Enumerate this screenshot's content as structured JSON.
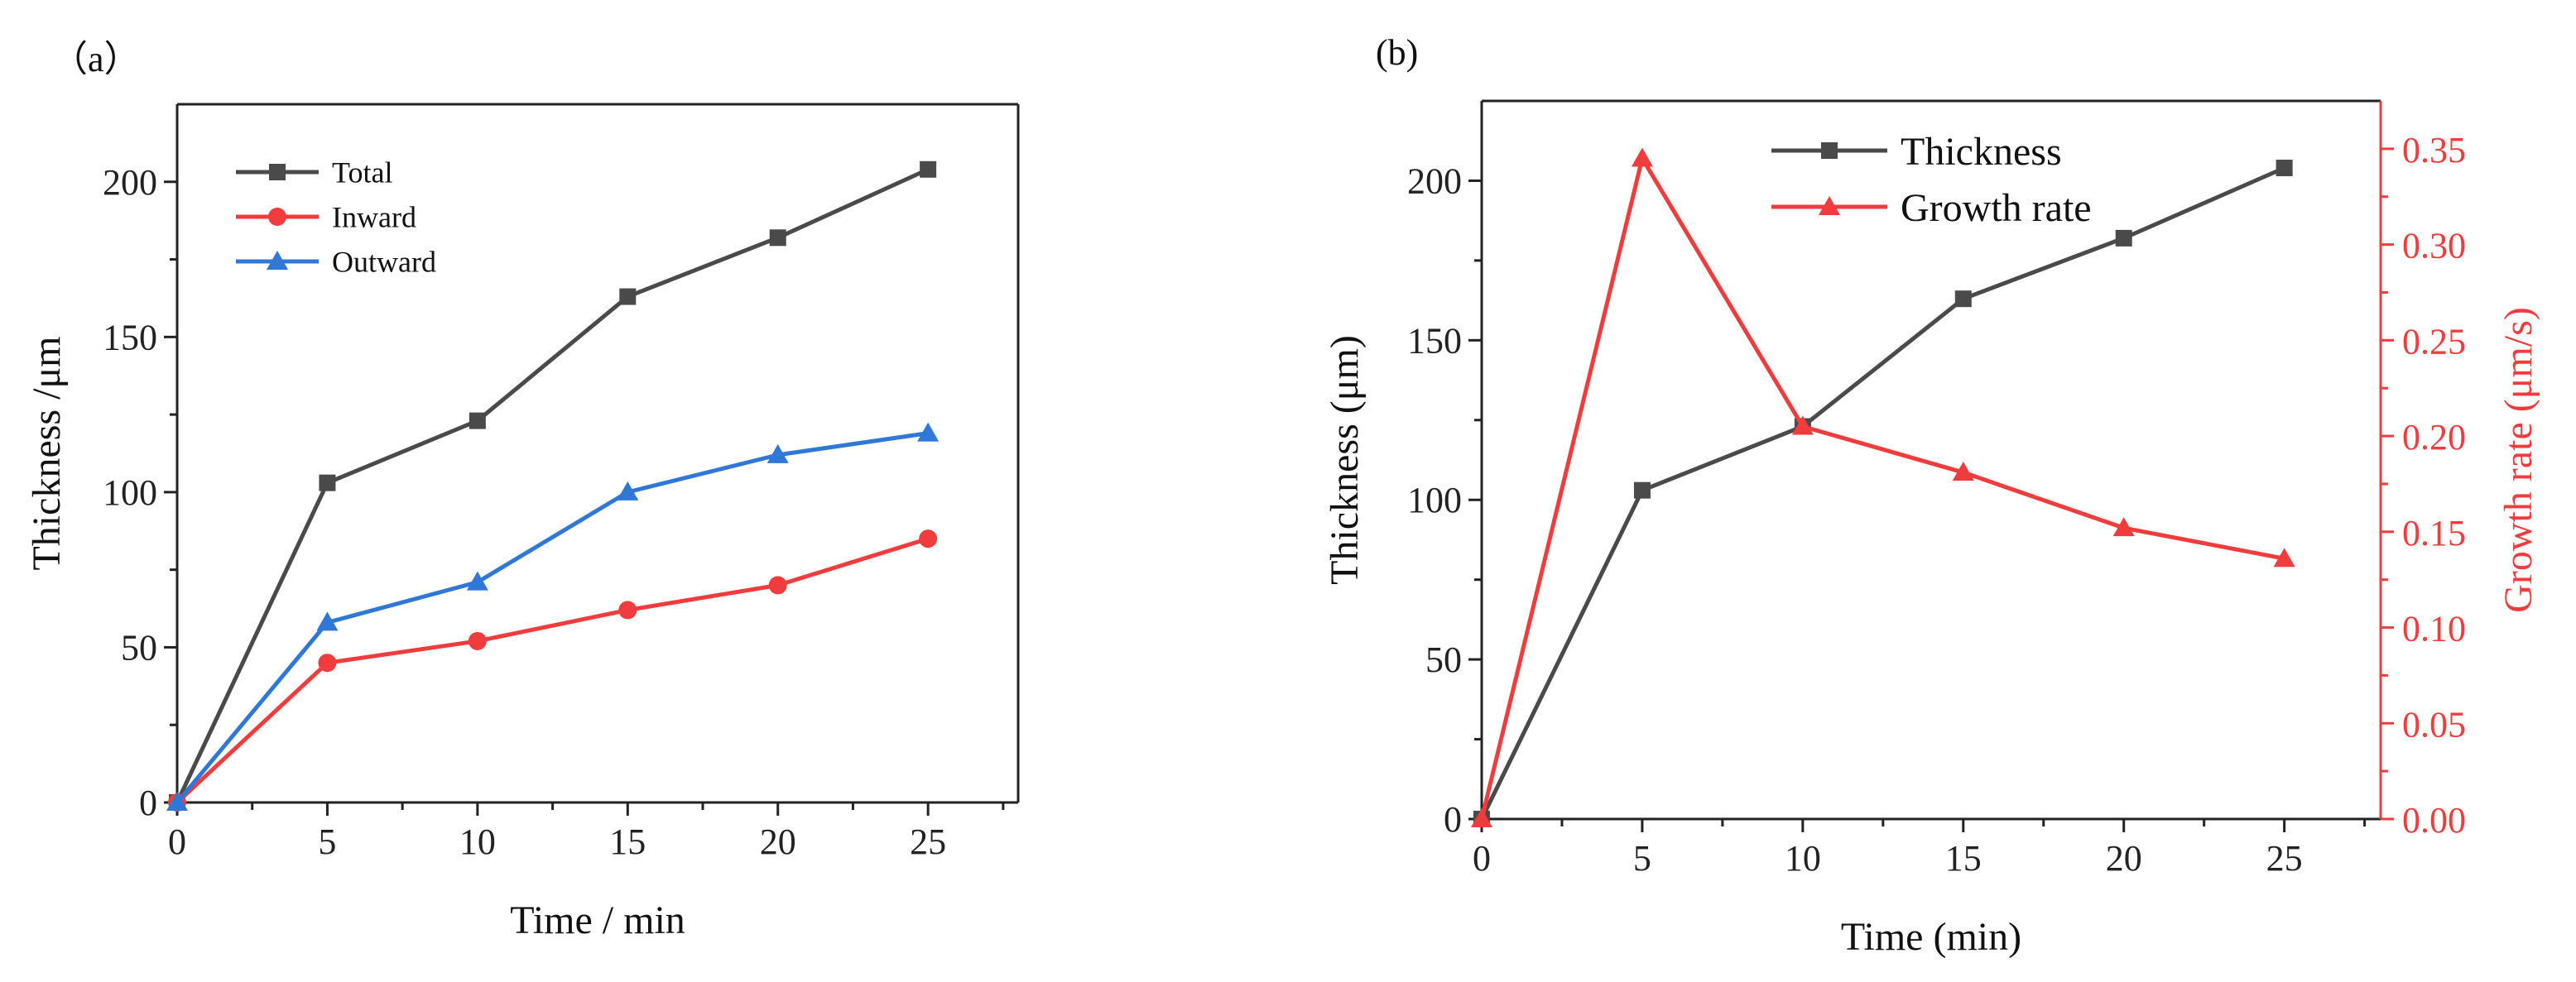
{
  "chart_data": [
    {
      "type": "line",
      "panel_label": "（a）",
      "xlabel": "Time / min",
      "ylabel": "Thickness /μm",
      "xlim": [
        0,
        28
      ],
      "ylim": [
        0,
        225
      ],
      "x_ticks": [
        0,
        5,
        10,
        15,
        20,
        25
      ],
      "x_tick_labels": [
        "0",
        "5",
        "10",
        "15",
        "20",
        "25"
      ],
      "y_ticks": [
        0,
        50,
        100,
        150,
        200
      ],
      "y_tick_labels": [
        "0",
        "50",
        "100",
        "150",
        "200"
      ],
      "legend_position": "top-left",
      "x": [
        0,
        5,
        10,
        15,
        20,
        25
      ],
      "series": [
        {
          "name": "Total",
          "color": "#4a4a4a",
          "marker": "square",
          "values": [
            0,
            103,
            123,
            163,
            182,
            204
          ]
        },
        {
          "name": "Inward",
          "color": "#f03c3c",
          "marker": "circle",
          "values": [
            0,
            45,
            52,
            62,
            70,
            85
          ]
        },
        {
          "name": "Outward",
          "color": "#2f78d8",
          "marker": "triangle",
          "values": [
            0,
            58,
            71,
            100,
            112,
            119
          ]
        }
      ]
    },
    {
      "type": "line",
      "panel_label": "(b)",
      "xlabel": "Time (min)",
      "ylabel": "Thickness (μm)",
      "y2label": "Growth rate (μm/s)",
      "xlim": [
        0,
        28
      ],
      "ylim": [
        0,
        225
      ],
      "y2lim": [
        0,
        0.375
      ],
      "x_ticks": [
        0,
        5,
        10,
        15,
        20,
        25
      ],
      "x_tick_labels": [
        "0",
        "5",
        "10",
        "15",
        "20",
        "25"
      ],
      "y_ticks": [
        0,
        50,
        100,
        150,
        200
      ],
      "y_tick_labels": [
        "0",
        "50",
        "100",
        "150",
        "200"
      ],
      "y2_ticks": [
        0,
        0.05,
        0.1,
        0.15,
        0.2,
        0.25,
        0.3,
        0.35
      ],
      "y2_tick_labels": [
        "0.00",
        "0.05",
        "0.10",
        "0.15",
        "0.20",
        "0.25",
        "0.30",
        "0.35"
      ],
      "legend_position": "top-center",
      "x": [
        0,
        5,
        10,
        15,
        20,
        25
      ],
      "series": [
        {
          "name": "Thickness",
          "axis": "left",
          "color": "#4a4a4a",
          "marker": "square",
          "values": [
            0,
            103,
            123,
            163,
            182,
            204
          ]
        },
        {
          "name": "Growth rate",
          "axis": "right",
          "color": "#f03c3c",
          "marker": "triangle",
          "values": [
            0,
            0.345,
            0.205,
            0.181,
            0.152,
            0.136
          ]
        }
      ]
    }
  ]
}
